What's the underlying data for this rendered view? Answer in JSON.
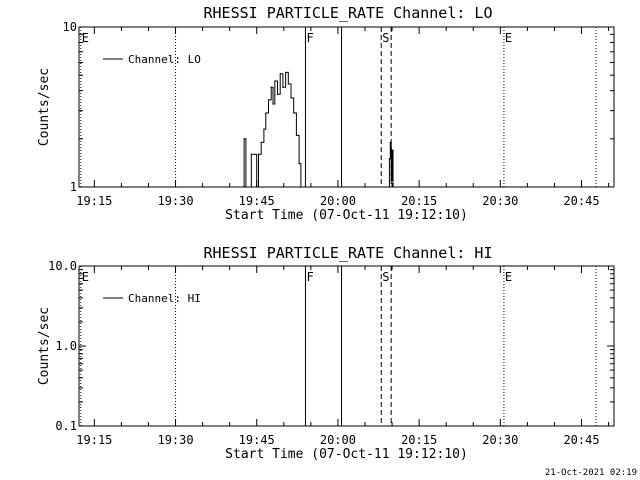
{
  "footer_timestamp": "21-Oct-2021 02:19",
  "chart_data": [
    {
      "type": "line",
      "title": "RHESSI PARTICLE_RATE Channel: LO",
      "xlabel": "Start Time (07-Oct-11 19:12:10)",
      "ylabel": "Counts/sec",
      "y_scale": "log",
      "ylim": [
        1,
        10
      ],
      "xlim": [
        "19:12:10",
        "20:51:00"
      ],
      "x_ticks": [
        "19:15",
        "19:30",
        "19:45",
        "20:00",
        "20:15",
        "20:30",
        "20:45"
      ],
      "y_ticks": [
        "1",
        "10"
      ],
      "legend": {
        "label": "Channel: LO",
        "placement": "top-left"
      },
      "series": [
        {
          "name": "Channel: LO",
          "points": [
            [
              "19:42:30",
              1
            ],
            [
              "19:42:40",
              2
            ],
            [
              "19:43:00",
              1
            ],
            [
              "19:44:00",
              1.6
            ],
            [
              "19:45:00",
              1
            ],
            [
              "19:45:20",
              1.6
            ],
            [
              "19:45:50",
              1.9
            ],
            [
              "19:46:20",
              2.3
            ],
            [
              "19:46:40",
              2.9
            ],
            [
              "19:47:10",
              3.5
            ],
            [
              "19:47:40",
              4.2
            ],
            [
              "19:48:00",
              3.3
            ],
            [
              "19:48:20",
              4.6
            ],
            [
              "19:48:50",
              3.8
            ],
            [
              "19:49:20",
              5.1
            ],
            [
              "19:49:50",
              4.2
            ],
            [
              "19:50:20",
              5.2
            ],
            [
              "19:50:50",
              4.4
            ],
            [
              "19:51:20",
              3.6
            ],
            [
              "19:51:50",
              2.9
            ],
            [
              "19:52:20",
              2.1
            ],
            [
              "19:52:50",
              1.4
            ],
            [
              "19:53:10",
              1
            ],
            [
              "20:09:20",
              1
            ],
            [
              "20:09:30",
              1.5
            ],
            [
              "20:09:40",
              1.9
            ],
            [
              "20:09:50",
              1.1
            ],
            [
              "20:10:00",
              1.7
            ],
            [
              "20:10:10",
              1
            ]
          ]
        }
      ],
      "vertical_markers": [
        {
          "time": "19:12:30",
          "style": "dotted",
          "label": "E"
        },
        {
          "time": "19:30:00",
          "style": "dotted",
          "label": ""
        },
        {
          "time": "19:54:00",
          "style": "solid",
          "label": "F"
        },
        {
          "time": "20:00:40",
          "style": "solid",
          "label": ""
        },
        {
          "time": "20:08:00",
          "style": "dashed",
          "label": "S"
        },
        {
          "time": "20:09:50",
          "style": "dashed",
          "label": ""
        },
        {
          "time": "20:30:40",
          "style": "dotted",
          "label": "E"
        },
        {
          "time": "20:47:40",
          "style": "dotted",
          "label": ""
        }
      ]
    },
    {
      "type": "line",
      "title": "RHESSI PARTICLE_RATE Channel: HI",
      "xlabel": "Start Time (07-Oct-11 19:12:10)",
      "ylabel": "Counts/sec",
      "y_scale": "log",
      "ylim": [
        0.1,
        10
      ],
      "xlim": [
        "19:12:10",
        "20:51:00"
      ],
      "x_ticks": [
        "19:15",
        "19:30",
        "19:45",
        "20:00",
        "20:15",
        "20:30",
        "20:45"
      ],
      "y_ticks": [
        "0.1",
        "1.0",
        "10.0"
      ],
      "legend": {
        "label": "Channel: HI",
        "placement": "top-left"
      },
      "series": [
        {
          "name": "Channel: HI",
          "points": []
        }
      ],
      "vertical_markers": [
        {
          "time": "19:12:30",
          "style": "dotted",
          "label": "E"
        },
        {
          "time": "19:30:00",
          "style": "dotted",
          "label": ""
        },
        {
          "time": "19:54:00",
          "style": "solid",
          "label": "F"
        },
        {
          "time": "20:00:40",
          "style": "solid",
          "label": ""
        },
        {
          "time": "20:08:00",
          "style": "dashed",
          "label": "S"
        },
        {
          "time": "20:09:50",
          "style": "dashed",
          "label": ""
        },
        {
          "time": "20:30:40",
          "style": "dotted",
          "label": "E"
        },
        {
          "time": "20:47:40",
          "style": "dotted",
          "label": ""
        }
      ]
    }
  ]
}
